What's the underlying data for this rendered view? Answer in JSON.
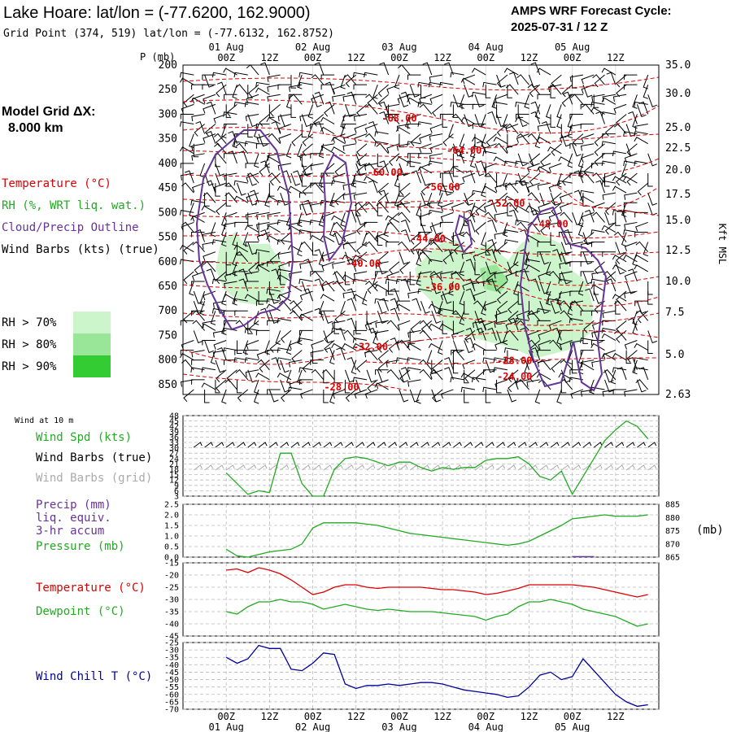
{
  "header": {
    "title": "Lake Hoare:  lat/lon = (-77.6200, 162.9000)",
    "grid_point": "Grid Point (374, 519) lat/lon = (-77.6132, 162.8752)",
    "cycle_label": "AMPS WRF Forecast Cycle:",
    "cycle_value": "2025-07-31 / 12  Z"
  },
  "time_axis": {
    "hour_labels": [
      "00Z",
      "12Z",
      "00Z",
      "12Z",
      "00Z",
      "12Z",
      "00Z",
      "12Z",
      "00Z",
      "12Z"
    ],
    "date_labels": [
      "01 Aug",
      "02 Aug",
      "03 Aug",
      "04 Aug",
      "05 Aug"
    ]
  },
  "left_legend": {
    "model_grid": "Model Grid ΔX:",
    "grid_value": "8.000 km",
    "temperature": "Temperature (°C)",
    "rh": "RH (%, WRT liq. wat.)",
    "cloud": "Cloud/Precip Outline",
    "wind": "Wind Barbs (kts) (true)",
    "rh_levels": [
      "RH > 70%",
      "RH > 80%",
      "RH > 90%"
    ],
    "rh_colors": [
      "#ccf5cc",
      "#99e699",
      "#33cc33"
    ]
  },
  "panel1_labels": {
    "pressure_axis_title": "P (mb)",
    "right_axis_title": "Kft MSL"
  },
  "panel2_labels": {
    "wind_at": "Wind at 10 m",
    "wind_spd": "Wind Spd (kts)",
    "wind_barbs_true": "Wind Barbs (true)",
    "wind_barbs_grid": "Wind Barbs (grid)"
  },
  "panel3_labels": {
    "precip": "Precip (mm)",
    "liq": "liq. equiv.",
    "accum": "3-hr accum",
    "pressure": "Pressure (mb)",
    "unit": "(mb)"
  },
  "panel4_labels": {
    "temperature": "Temperature (°C)",
    "dewpoint": "Dewpoint (°C)"
  },
  "panel5_labels": {
    "wind_chill": "Wind Chill T (°C)"
  },
  "colors": {
    "temperature": "#dd0000",
    "rh": "#22aa22",
    "cloud": "#663399",
    "wind_grid": "#aaaaaa",
    "chill": "#000099",
    "grid": "#bbbbbb"
  },
  "chart_data": [
    {
      "type": "contour",
      "y_ticks_pressure": [
        "200",
        "250",
        "300",
        "350",
        "400",
        "450",
        "500",
        "550",
        "600",
        "650",
        "700",
        "750",
        "800",
        "850"
      ],
      "y_ticks_height_kft": [
        "35.0",
        "30.0",
        "25.0",
        "22.5",
        "20.0",
        "17.5",
        "15.0",
        "12.5",
        "10.0",
        "7.5",
        "5.0",
        "2.63"
      ],
      "temperature_contour_labels": [
        {
          "label": "-68.00",
          "time_h": 48,
          "p": 315
        },
        {
          "label": "-64.00",
          "time_h": 66,
          "p": 380
        },
        {
          "label": "-60.00",
          "time_h": 44,
          "p": 425
        },
        {
          "label": "-56.00",
          "time_h": 60,
          "p": 455
        },
        {
          "label": "-52.00",
          "time_h": 78,
          "p": 488
        },
        {
          "label": "-48.00",
          "time_h": 90,
          "p": 530
        },
        {
          "label": "-44.00",
          "time_h": 56,
          "p": 560
        },
        {
          "label": "-40.00",
          "time_h": 38,
          "p": 610
        },
        {
          "label": "-36.00",
          "time_h": 60,
          "p": 658
        },
        {
          "label": "-32.00",
          "time_h": 40,
          "p": 780
        },
        {
          "label": "-28.00",
          "time_h": 80,
          "p": 808
        },
        {
          "label": "-24.00",
          "time_h": 80,
          "p": 840
        },
        {
          "label": "-28.00",
          "time_h": 32,
          "p": 862
        }
      ]
    },
    {
      "type": "line",
      "name_ref": "Wind Spd (kts)",
      "y_ticks": [
        "48",
        "45",
        "42",
        "39",
        "36",
        "33",
        "30",
        "27",
        "24",
        "21",
        "18",
        "15",
        "12",
        "9",
        "6",
        "3"
      ],
      "x_hours": [
        0,
        3,
        6,
        9,
        12,
        15,
        18,
        21,
        24,
        27,
        30,
        33,
        36,
        39,
        42,
        45,
        48,
        51,
        54,
        57,
        60,
        63,
        66,
        69,
        72,
        75,
        78,
        81,
        84,
        87,
        90,
        93,
        96,
        99,
        102,
        105,
        108,
        111,
        114,
        117
      ],
      "values": [
        16,
        10,
        4,
        6,
        5,
        27,
        27,
        10,
        3,
        3,
        18,
        24,
        25,
        24,
        22,
        20,
        22,
        22,
        19,
        17,
        19,
        18,
        19,
        19,
        23,
        24,
        24,
        25,
        21,
        14,
        12,
        17,
        4,
        14,
        24,
        34,
        40,
        45,
        42,
        35
      ]
    },
    {
      "type": "line",
      "name_ref": "Pressure (mb)",
      "y_ticks_left": [
        "2.5",
        "2.0",
        "1.5",
        "1.0",
        "0.5",
        "0.0"
      ],
      "y_ticks_right": [
        "885",
        "880",
        "875",
        "870",
        "865"
      ],
      "x_hours": [
        0,
        3,
        6,
        9,
        12,
        15,
        18,
        21,
        24,
        27,
        30,
        33,
        36,
        39,
        42,
        45,
        48,
        51,
        54,
        57,
        60,
        63,
        66,
        69,
        72,
        75,
        78,
        81,
        84,
        87,
        90,
        93,
        96,
        99,
        102,
        105,
        108,
        111,
        114,
        117
      ],
      "pressure": [
        868,
        865.5,
        865,
        866,
        867,
        867.5,
        868,
        870,
        876,
        878,
        878,
        878,
        878,
        877.5,
        877,
        876,
        875,
        874,
        873.5,
        873,
        872.5,
        872,
        871.5,
        871,
        870.5,
        870,
        869.5,
        870,
        871,
        873,
        875,
        877,
        879.5,
        880,
        880.5,
        881,
        880.5,
        880.5,
        880.5,
        881
      ],
      "precip_bars": [
        {
          "time_h": 96,
          "value": 0.05
        },
        {
          "time_h": 99,
          "value": 0.05
        }
      ]
    },
    {
      "type": "line",
      "series_ref": [
        "Temperature (°C)",
        "Dewpoint (°C)"
      ],
      "y_ticks": [
        "-15",
        "-20",
        "-25",
        "-30",
        "-35",
        "-40",
        "-45"
      ],
      "x_hours": [
        0,
        3,
        6,
        9,
        12,
        15,
        18,
        21,
        24,
        27,
        30,
        33,
        36,
        39,
        42,
        45,
        48,
        51,
        54,
        57,
        60,
        63,
        66,
        69,
        72,
        75,
        78,
        81,
        84,
        87,
        90,
        93,
        96,
        99,
        102,
        105,
        108,
        111,
        114,
        117
      ],
      "temperature": [
        -18,
        -17.5,
        -19,
        -17,
        -18,
        -19.5,
        -22,
        -25,
        -28,
        -27,
        -25,
        -24,
        -24,
        -25,
        -25.5,
        -25,
        -25,
        -25,
        -25,
        -25.5,
        -26,
        -26,
        -26.5,
        -27,
        -28,
        -27.5,
        -26.5,
        -25.5,
        -24,
        -24,
        -24,
        -24,
        -24,
        -24.5,
        -25,
        -26,
        -27,
        -28,
        -29,
        -28
      ],
      "dewpoint": [
        -35,
        -36,
        -33,
        -31,
        -31,
        -30,
        -31,
        -31,
        -32,
        -34,
        -33,
        -32,
        -33,
        -34,
        -34.5,
        -34,
        -34.5,
        -35,
        -35,
        -35,
        -35.5,
        -36,
        -36.5,
        -37,
        -38.5,
        -37,
        -36,
        -33,
        -31,
        -31,
        -30,
        -31,
        -32,
        -34,
        -35,
        -36,
        -37,
        -39,
        -41,
        -40
      ]
    },
    {
      "type": "line",
      "name_ref": "Wind Chill T (°C)",
      "y_ticks": [
        "-25",
        "-30",
        "-35",
        "-40",
        "-45",
        "-50",
        "-55",
        "-60",
        "-65",
        "-70"
      ],
      "x_hours": [
        0,
        3,
        6,
        9,
        12,
        15,
        18,
        21,
        24,
        27,
        30,
        33,
        36,
        39,
        42,
        45,
        48,
        51,
        54,
        57,
        60,
        63,
        66,
        69,
        72,
        75,
        78,
        81,
        84,
        87,
        90,
        93,
        96,
        99,
        102,
        105,
        108,
        111,
        114,
        117
      ],
      "values": [
        -35,
        -39,
        -36,
        -27,
        -29,
        -29,
        -43,
        -44,
        -39,
        -32,
        -33,
        -53,
        -56,
        -54,
        -54,
        -53,
        -54,
        -53,
        -52,
        -52,
        -53,
        -55,
        -57,
        -58,
        -59,
        -60,
        -62,
        -61,
        -55,
        -47,
        -45,
        -50,
        -48,
        -36,
        -44,
        -52,
        -60,
        -65,
        -68,
        -67
      ]
    }
  ]
}
